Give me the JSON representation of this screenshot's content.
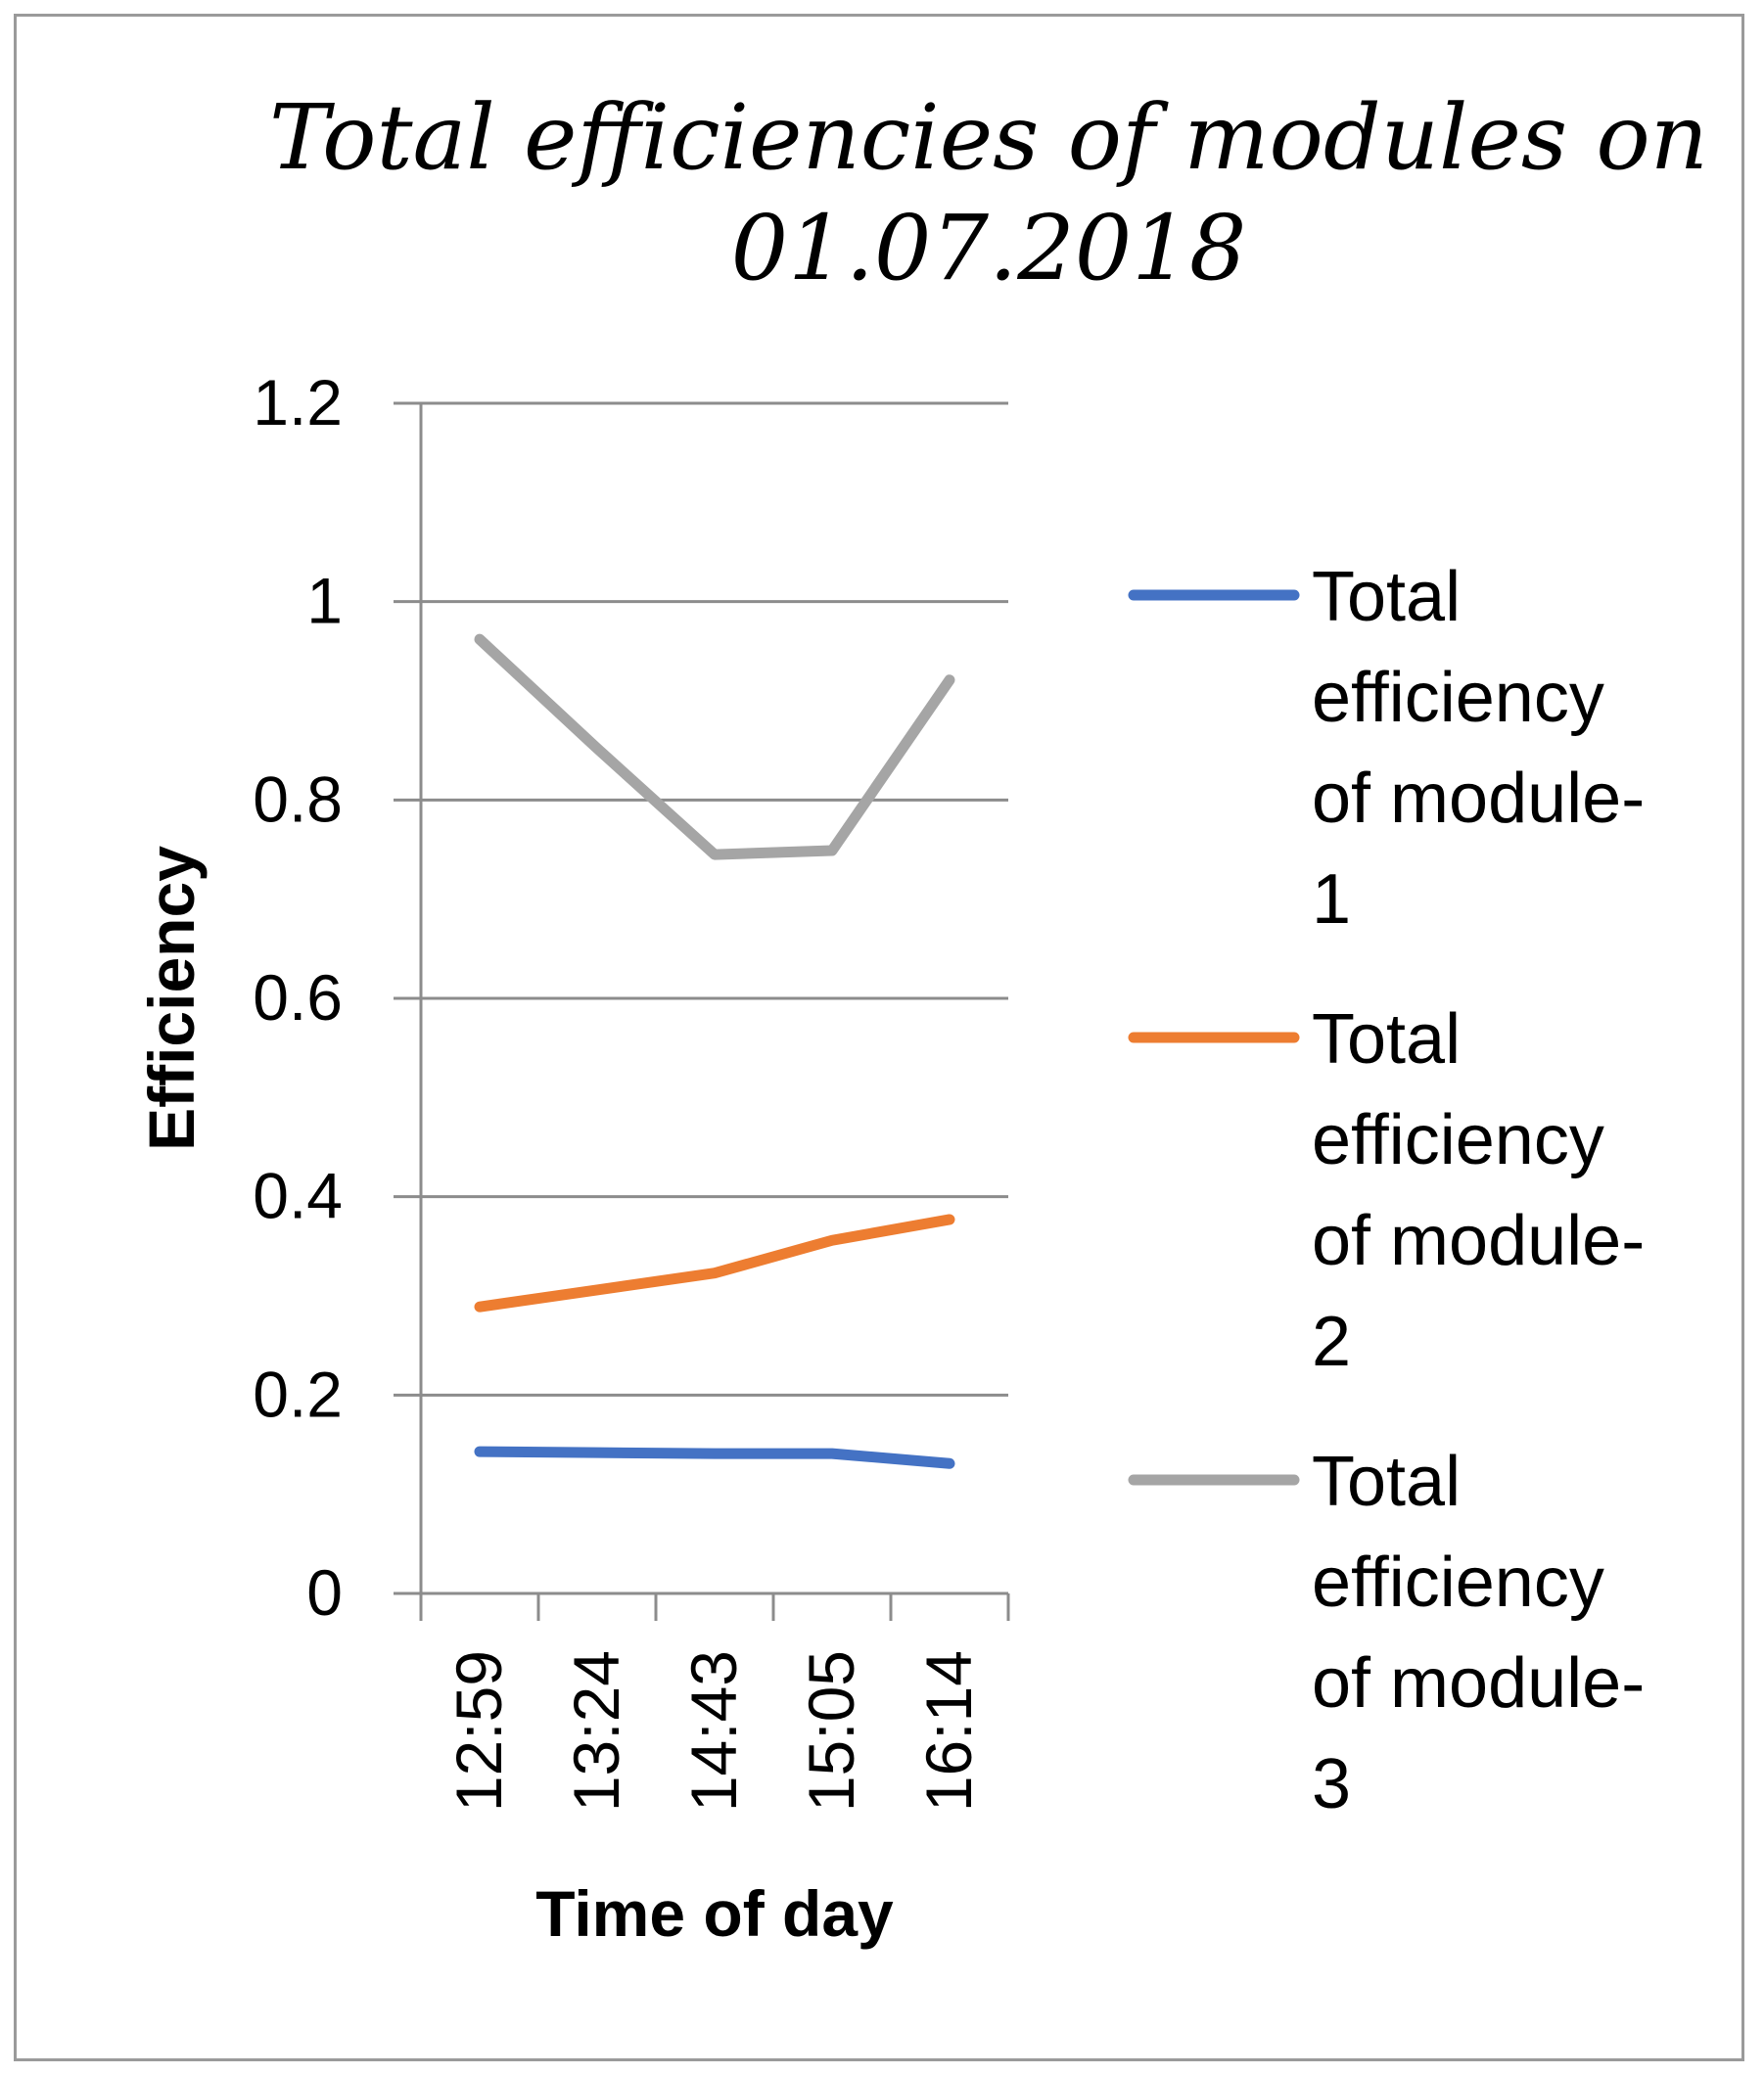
{
  "chart_data": {
    "type": "line",
    "title_lines": [
      "Total efficiencies of modules on",
      "01.07.2018"
    ],
    "xlabel": "Time of day",
    "ylabel": "Efficiency",
    "categories": [
      "12:59",
      "13:24",
      "14:43",
      "15:05",
      "16:14"
    ],
    "yticks": [
      "0",
      "0.2",
      "0.4",
      "0.6",
      "0.8",
      "1",
      "1.2"
    ],
    "ylim": [
      0,
      1.2
    ],
    "grid": "horizontal",
    "legend_position": "right",
    "series": [
      {
        "name": "Total efficiency of module-1",
        "legend_lines": [
          "Total",
          "efficiency",
          "of module-",
          "1"
        ],
        "color": "#4472C4",
        "values": [
          0.143,
          0.142,
          0.141,
          0.141,
          0.131
        ]
      },
      {
        "name": "Total efficiency of module-2",
        "legend_lines": [
          "Total",
          "efficiency",
          "of module-",
          "2"
        ],
        "color": "#ED7D31",
        "values": [
          0.289,
          0.306,
          0.323,
          0.356,
          0.377
        ]
      },
      {
        "name": "Total efficiency of module-3",
        "legend_lines": [
          "Total",
          "efficiency",
          "of module-",
          "3"
        ],
        "color": "#A5A5A5",
        "values": [
          0.962,
          0.852,
          0.745,
          0.749,
          0.921
        ]
      }
    ]
  }
}
